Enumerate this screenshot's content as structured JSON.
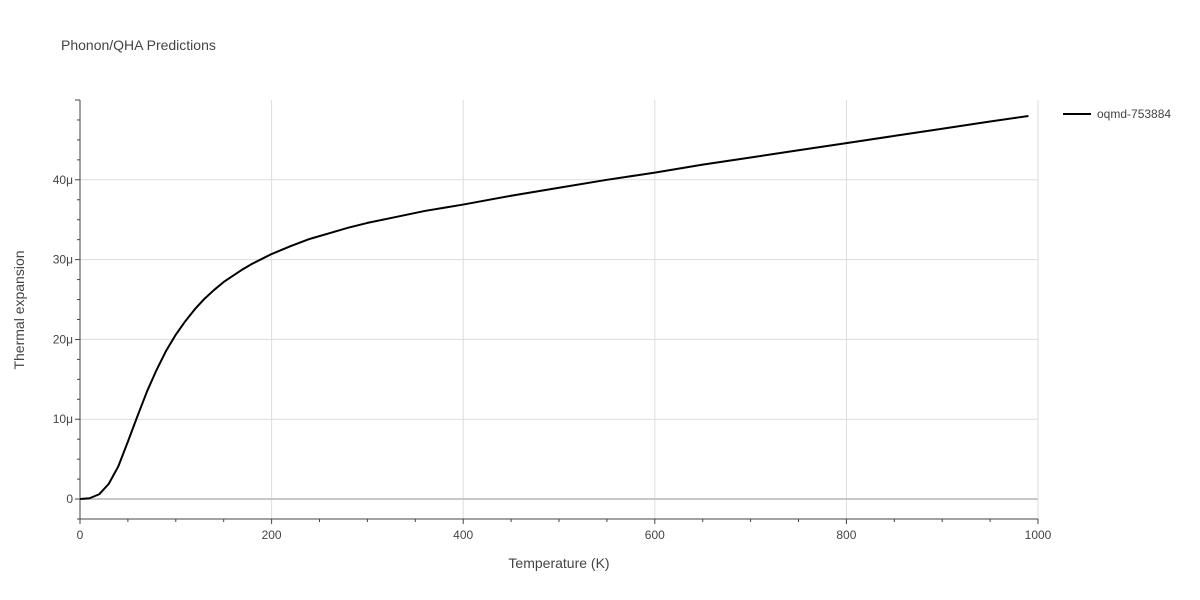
{
  "chart_data": {
    "type": "line",
    "title": "Phonon/QHA Predictions",
    "xlabel": "Temperature (K)",
    "ylabel": "Thermal expansion",
    "xlim": [
      0,
      1000
    ],
    "ylim": [
      -2.5e-06,
      5e-05
    ],
    "x_ticks": [
      0,
      200,
      400,
      600,
      800,
      1000
    ],
    "x_tick_labels": [
      "0",
      "200",
      "400",
      "600",
      "800",
      "1000"
    ],
    "y_ticks": [
      0,
      1e-05,
      2e-05,
      3e-05,
      4e-05
    ],
    "y_tick_labels": [
      "0",
      "10μ",
      "20μ",
      "30μ",
      "40μ"
    ],
    "grid": true,
    "legend_position": "top-right",
    "series": [
      {
        "name": "oqmd-753884",
        "color": "#000000",
        "x": [
          0,
          10,
          20,
          30,
          40,
          50,
          60,
          70,
          80,
          90,
          100,
          110,
          120,
          130,
          140,
          150,
          160,
          170,
          180,
          190,
          200,
          220,
          240,
          260,
          280,
          300,
          320,
          340,
          360,
          380,
          400,
          450,
          500,
          550,
          600,
          650,
          700,
          750,
          800,
          850,
          900,
          950,
          990
        ],
        "y": [
          0,
          1e-07,
          6e-07,
          1.9e-06,
          4.1e-06,
          7.2e-06,
          1.04e-05,
          1.35e-05,
          1.62e-05,
          1.86e-05,
          2.06e-05,
          2.23e-05,
          2.38e-05,
          2.51e-05,
          2.62e-05,
          2.72e-05,
          2.8e-05,
          2.88e-05,
          2.95e-05,
          3.01e-05,
          3.07e-05,
          3.17e-05,
          3.26e-05,
          3.33e-05,
          3.4e-05,
          3.46e-05,
          3.51e-05,
          3.56e-05,
          3.61e-05,
          3.65e-05,
          3.69e-05,
          3.8e-05,
          3.9e-05,
          4e-05,
          4.09e-05,
          4.19e-05,
          4.28e-05,
          4.37e-05,
          4.46e-05,
          4.55e-05,
          4.64e-05,
          4.73e-05,
          4.8e-05
        ]
      }
    ]
  }
}
